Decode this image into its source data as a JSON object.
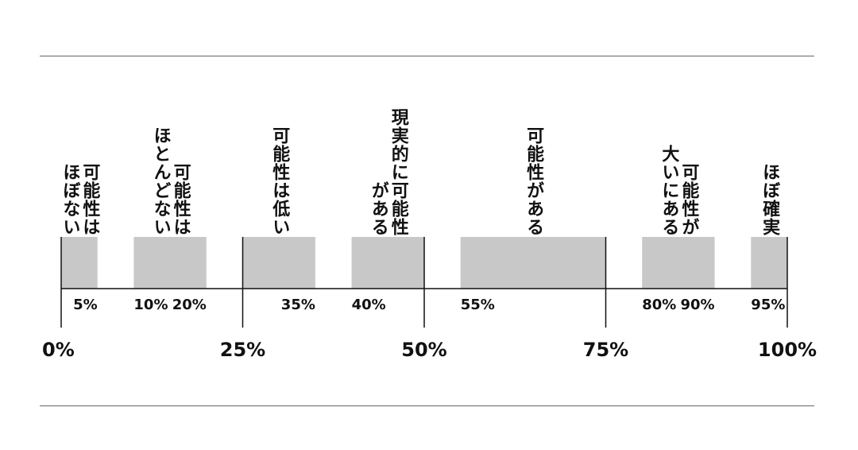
{
  "chart_data": {
    "type": "range-band",
    "xlim": [
      0,
      100
    ],
    "grid": false,
    "colors": {
      "band": "#c8c8c8",
      "axis": "#111111",
      "rule": "#666666"
    },
    "major_ticks": [
      "0%",
      "25%",
      "50%",
      "75%",
      "100%"
    ],
    "bands": [
      {
        "start": 0,
        "end": 5,
        "columns": [
          "可能性は",
          "ほぼない"
        ]
      },
      {
        "start": 10,
        "end": 20,
        "columns": [
          "可能性は",
          "ほとんどない"
        ]
      },
      {
        "start": 25,
        "end": 35,
        "columns": [
          "可能性は低い"
        ]
      },
      {
        "start": 40,
        "end": 50,
        "columns": [
          "現実的に可能性",
          "がある"
        ]
      },
      {
        "start": 55,
        "end": 75,
        "columns": [
          "可能性がある"
        ]
      },
      {
        "start": 80,
        "end": 90,
        "columns": [
          "可能性が",
          "大いにある"
        ]
      },
      {
        "start": 95,
        "end": 100,
        "columns": [
          "ほぼ確実"
        ]
      }
    ],
    "endpoint_labels": [
      {
        "value": 5,
        "label": "5%"
      },
      {
        "value": 10,
        "label": "10%"
      },
      {
        "value": 20,
        "label": "20%"
      },
      {
        "value": 35,
        "label": "35%"
      },
      {
        "value": 40,
        "label": "40%"
      },
      {
        "value": 55,
        "label": "55%"
      },
      {
        "value": 80,
        "label": "80%"
      },
      {
        "value": 90,
        "label": "90%"
      },
      {
        "value": 95,
        "label": "95%"
      }
    ],
    "major_tick_values": [
      0,
      25,
      50,
      75,
      100
    ]
  }
}
